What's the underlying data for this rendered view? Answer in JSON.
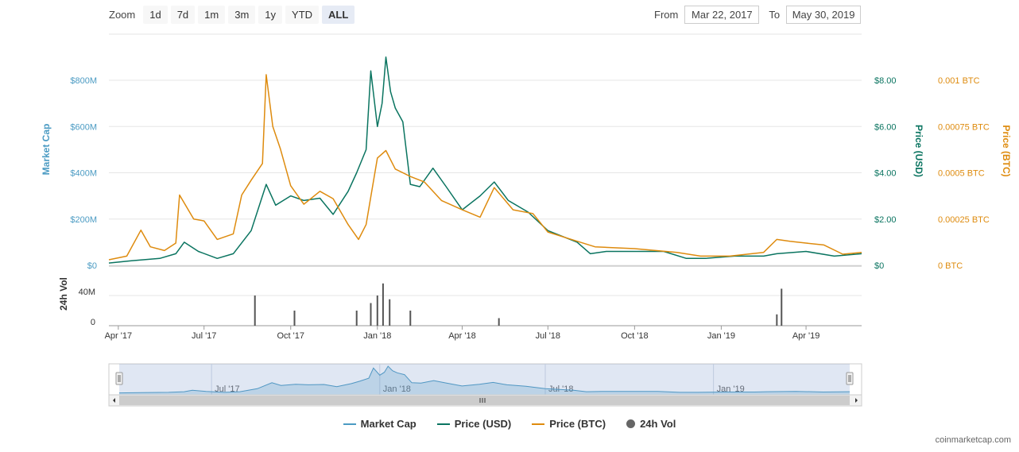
{
  "toolbar": {
    "zoom_label": "Zoom",
    "buttons": [
      "1d",
      "7d",
      "1m",
      "3m",
      "1y",
      "YTD",
      "ALL"
    ],
    "active": "ALL",
    "from_label": "From",
    "from_value": "Mar 22, 2017",
    "to_label": "To",
    "to_value": "May 30, 2019"
  },
  "legend": [
    "Market Cap",
    "Price (USD)",
    "Price (BTC)",
    "24h Vol"
  ],
  "credit": "coinmarketcap.com",
  "colors": {
    "market_cap": "#4b9bc3",
    "price_usd": "#0a7460",
    "price_btc": "#de8b0e",
    "volume": "#555555"
  },
  "chart_data": {
    "type": "line",
    "x_range": [
      "2017-03-22",
      "2019-05-30"
    ],
    "x_ticks": [
      {
        "date": "2017-04-01",
        "label": "Apr '17"
      },
      {
        "date": "2017-07-01",
        "label": "Jul '17"
      },
      {
        "date": "2017-10-01",
        "label": "Oct '17"
      },
      {
        "date": "2018-01-01",
        "label": "Jan '18"
      },
      {
        "date": "2018-04-01",
        "label": "Apr '18"
      },
      {
        "date": "2018-07-01",
        "label": "Jul '18"
      },
      {
        "date": "2018-10-01",
        "label": "Oct '18"
      },
      {
        "date": "2019-01-01",
        "label": "Jan '19"
      },
      {
        "date": "2019-04-01",
        "label": "Apr '19"
      }
    ],
    "nav_ticks": [
      {
        "date": "2017-07-01",
        "label": "Jul '17"
      },
      {
        "date": "2018-01-01",
        "label": "Jan '18"
      },
      {
        "date": "2018-07-01",
        "label": "Jul '18"
      },
      {
        "date": "2019-01-01",
        "label": "Jan '19"
      }
    ],
    "axes": {
      "market_cap": {
        "label": "Market Cap",
        "range": [
          0,
          800000000
        ],
        "ticks": [
          {
            "v": 0,
            "label": "$0"
          },
          {
            "v": 200000000,
            "label": "$200M"
          },
          {
            "v": 400000000,
            "label": "$400M"
          },
          {
            "v": 600000000,
            "label": "$600M"
          },
          {
            "v": 800000000,
            "label": "$800M"
          }
        ]
      },
      "price_usd": {
        "label": "Price (USD)",
        "range": [
          0,
          8
        ],
        "ticks": [
          {
            "v": 0,
            "label": "$0"
          },
          {
            "v": 2,
            "label": "$2.00"
          },
          {
            "v": 4,
            "label": "$4.00"
          },
          {
            "v": 6,
            "label": "$6.00"
          },
          {
            "v": 8,
            "label": "$8.00"
          }
        ]
      },
      "price_btc": {
        "label": "Price (BTC)",
        "range": [
          0,
          0.001
        ],
        "ticks": [
          {
            "v": 0,
            "label": "0 BTC"
          },
          {
            "v": 0.00025,
            "label": "0.00025 BTC"
          },
          {
            "v": 0.0005,
            "label": "0.0005 BTC"
          },
          {
            "v": 0.00075,
            "label": "0.00075 BTC"
          },
          {
            "v": 0.001,
            "label": "0.001 BTC"
          }
        ]
      },
      "volume": {
        "label": "24h Vol",
        "range": [
          0,
          40000000
        ],
        "ticks": [
          {
            "v": 0,
            "label": "0"
          },
          {
            "v": 40000000,
            "label": "40M"
          }
        ]
      }
    },
    "series": [
      {
        "name": "Price (USD)",
        "axis": "price_usd",
        "points": [
          [
            "2017-03-22",
            0.1
          ],
          [
            "2017-04-15",
            0.2
          ],
          [
            "2017-05-15",
            0.3
          ],
          [
            "2017-06-01",
            0.5
          ],
          [
            "2017-06-10",
            1.0
          ],
          [
            "2017-06-25",
            0.6
          ],
          [
            "2017-07-15",
            0.3
          ],
          [
            "2017-08-01",
            0.5
          ],
          [
            "2017-08-20",
            1.5
          ],
          [
            "2017-09-05",
            3.5
          ],
          [
            "2017-09-15",
            2.6
          ],
          [
            "2017-10-01",
            3.0
          ],
          [
            "2017-10-15",
            2.8
          ],
          [
            "2017-11-01",
            2.9
          ],
          [
            "2017-11-15",
            2.2
          ],
          [
            "2017-12-01",
            3.2
          ],
          [
            "2017-12-10",
            4.0
          ],
          [
            "2017-12-20",
            5.0
          ],
          [
            "2017-12-25",
            8.4
          ],
          [
            "2018-01-01",
            6.0
          ],
          [
            "2018-01-06",
            7.0
          ],
          [
            "2018-01-10",
            9.0
          ],
          [
            "2018-01-15",
            7.5
          ],
          [
            "2018-01-20",
            6.8
          ],
          [
            "2018-01-28",
            6.2
          ],
          [
            "2018-02-05",
            3.5
          ],
          [
            "2018-02-15",
            3.4
          ],
          [
            "2018-03-01",
            4.2
          ],
          [
            "2018-03-15",
            3.4
          ],
          [
            "2018-04-01",
            2.4
          ],
          [
            "2018-04-20",
            3.0
          ],
          [
            "2018-05-05",
            3.6
          ],
          [
            "2018-05-20",
            2.8
          ],
          [
            "2018-06-10",
            2.3
          ],
          [
            "2018-07-01",
            1.5
          ],
          [
            "2018-08-01",
            1.0
          ],
          [
            "2018-08-15",
            0.5
          ],
          [
            "2018-09-01",
            0.6
          ],
          [
            "2018-10-01",
            0.6
          ],
          [
            "2018-11-01",
            0.6
          ],
          [
            "2018-11-25",
            0.3
          ],
          [
            "2018-12-15",
            0.3
          ],
          [
            "2019-01-15",
            0.4
          ],
          [
            "2019-02-15",
            0.4
          ],
          [
            "2019-03-01",
            0.5
          ],
          [
            "2019-04-01",
            0.6
          ],
          [
            "2019-05-01",
            0.4
          ],
          [
            "2019-05-30",
            0.5
          ]
        ]
      },
      {
        "name": "Price (BTC)",
        "axis": "price_btc",
        "points": [
          [
            "2017-03-22",
            3e-05
          ],
          [
            "2017-04-10",
            5e-05
          ],
          [
            "2017-04-25",
            0.00019
          ],
          [
            "2017-05-05",
            0.0001
          ],
          [
            "2017-05-20",
            8e-05
          ],
          [
            "2017-06-01",
            0.00012
          ],
          [
            "2017-06-05",
            0.00038
          ],
          [
            "2017-06-20",
            0.00025
          ],
          [
            "2017-07-01",
            0.00024
          ],
          [
            "2017-07-15",
            0.00014
          ],
          [
            "2017-08-01",
            0.00017
          ],
          [
            "2017-08-10",
            0.00038
          ],
          [
            "2017-08-20",
            0.00046
          ],
          [
            "2017-09-01",
            0.00055
          ],
          [
            "2017-09-05",
            0.00103
          ],
          [
            "2017-09-12",
            0.00075
          ],
          [
            "2017-09-20",
            0.00063
          ],
          [
            "2017-10-01",
            0.00043
          ],
          [
            "2017-10-15",
            0.00033
          ],
          [
            "2017-11-01",
            0.0004
          ],
          [
            "2017-11-15",
            0.00036
          ],
          [
            "2017-12-01",
            0.00022
          ],
          [
            "2017-12-12",
            0.00014
          ],
          [
            "2017-12-20",
            0.00022
          ],
          [
            "2018-01-01",
            0.00058
          ],
          [
            "2018-01-10",
            0.00062
          ],
          [
            "2018-01-20",
            0.00052
          ],
          [
            "2018-02-05",
            0.00048
          ],
          [
            "2018-02-20",
            0.00045
          ],
          [
            "2018-03-10",
            0.00035
          ],
          [
            "2018-04-01",
            0.0003
          ],
          [
            "2018-04-20",
            0.00026
          ],
          [
            "2018-05-05",
            0.00042
          ],
          [
            "2018-05-25",
            0.0003
          ],
          [
            "2018-06-15",
            0.00028
          ],
          [
            "2018-07-01",
            0.00018
          ],
          [
            "2018-08-01",
            0.00013
          ],
          [
            "2018-08-20",
            0.0001
          ],
          [
            "2018-10-01",
            9e-05
          ],
          [
            "2018-11-15",
            7e-05
          ],
          [
            "2018-12-10",
            5e-05
          ],
          [
            "2019-01-10",
            5e-05
          ],
          [
            "2019-02-15",
            7e-05
          ],
          [
            "2019-03-01",
            0.00014
          ],
          [
            "2019-03-15",
            0.00013
          ],
          [
            "2019-04-01",
            0.00012
          ],
          [
            "2019-04-20",
            0.00011
          ],
          [
            "2019-05-10",
            6e-05
          ],
          [
            "2019-05-30",
            7e-05
          ]
        ]
      }
    ],
    "volume": [
      {
        "date": "2017-08-24",
        "v": 40000000
      },
      {
        "date": "2017-10-05",
        "v": 20000000
      },
      {
        "date": "2017-12-10",
        "v": 20000000
      },
      {
        "date": "2017-12-25",
        "v": 30000000
      },
      {
        "date": "2018-01-01",
        "v": 40000000
      },
      {
        "date": "2018-01-07",
        "v": 56000000
      },
      {
        "date": "2018-01-14",
        "v": 35000000
      },
      {
        "date": "2018-02-05",
        "v": 20000000
      },
      {
        "date": "2018-05-10",
        "v": 10000000
      },
      {
        "date": "2019-03-01",
        "v": 15000000
      },
      {
        "date": "2019-03-06",
        "v": 49000000
      }
    ],
    "nav": {
      "type": "area",
      "series": "Market Cap",
      "start": "2017-03-22",
      "end": "2019-05-30"
    }
  }
}
